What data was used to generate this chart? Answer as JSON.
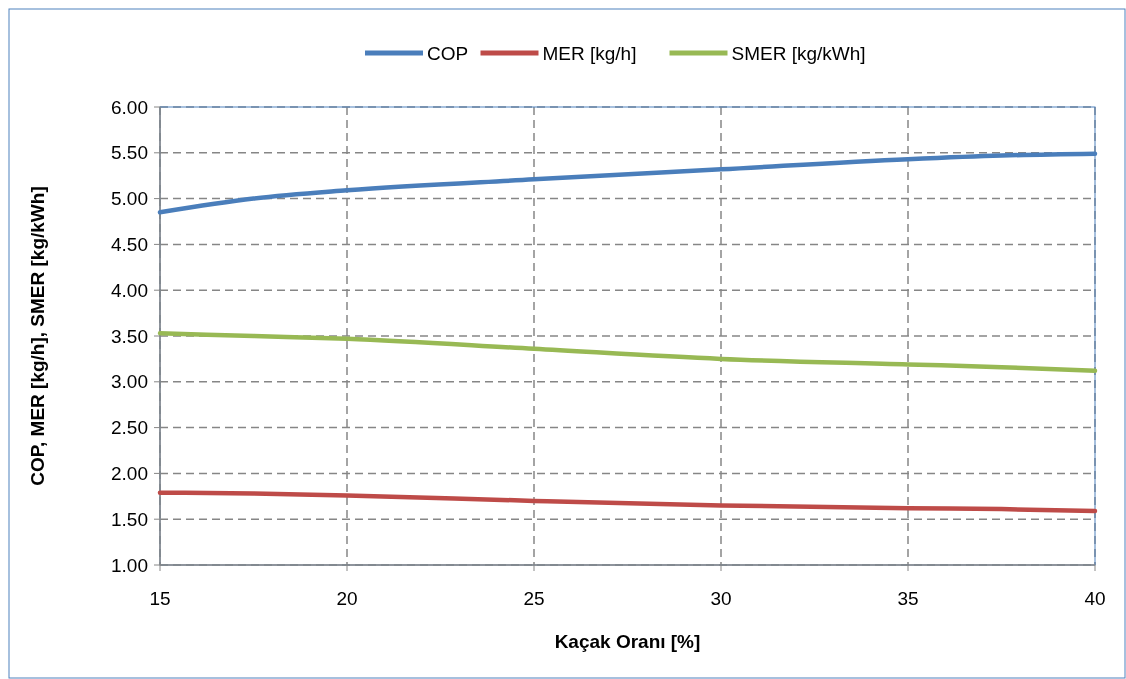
{
  "chart_data": {
    "type": "line",
    "xlabel": "Kaçak Oranı [%]",
    "ylabel": "COP, MER [kg/h], SMER [kg/kWh]",
    "x": [
      15,
      17.5,
      20,
      25,
      30,
      35,
      37.5,
      40
    ],
    "series": [
      {
        "name": "COP",
        "color": "#4a7ebb",
        "values": [
          4.85,
          5.0,
          5.09,
          5.21,
          5.32,
          5.43,
          5.47,
          5.49
        ]
      },
      {
        "name": "MER [kg/h]",
        "color": "#be4b48",
        "values": [
          1.79,
          1.78,
          1.76,
          1.7,
          1.65,
          1.62,
          1.61,
          1.59
        ]
      },
      {
        "name": "SMER [kg/kWh]",
        "color": "#98b954",
        "values": [
          3.53,
          3.5,
          3.47,
          3.36,
          3.25,
          3.19,
          3.16,
          3.12
        ]
      }
    ],
    "xlim": [
      15,
      40
    ],
    "xticks": [
      15,
      20,
      25,
      30,
      35,
      40
    ],
    "ylim": [
      1,
      6
    ],
    "yticks": [
      {
        "value": 1,
        "label": "1.00"
      },
      {
        "value": 1.5,
        "label": "1.50"
      },
      {
        "value": 2,
        "label": "2.00"
      },
      {
        "value": 2.5,
        "label": "2.50"
      },
      {
        "value": 3,
        "label": "3.00"
      },
      {
        "value": 3.5,
        "label": "3.50"
      },
      {
        "value": 4,
        "label": "4.00"
      },
      {
        "value": 4.5,
        "label": "4.50"
      },
      {
        "value": 5,
        "label": "5.00"
      },
      {
        "value": 5.5,
        "label": "5.50"
      },
      {
        "value": 6,
        "label": "6.00"
      }
    ],
    "grid": true,
    "legend": "top",
    "marker": "none",
    "line_style": "solid"
  }
}
